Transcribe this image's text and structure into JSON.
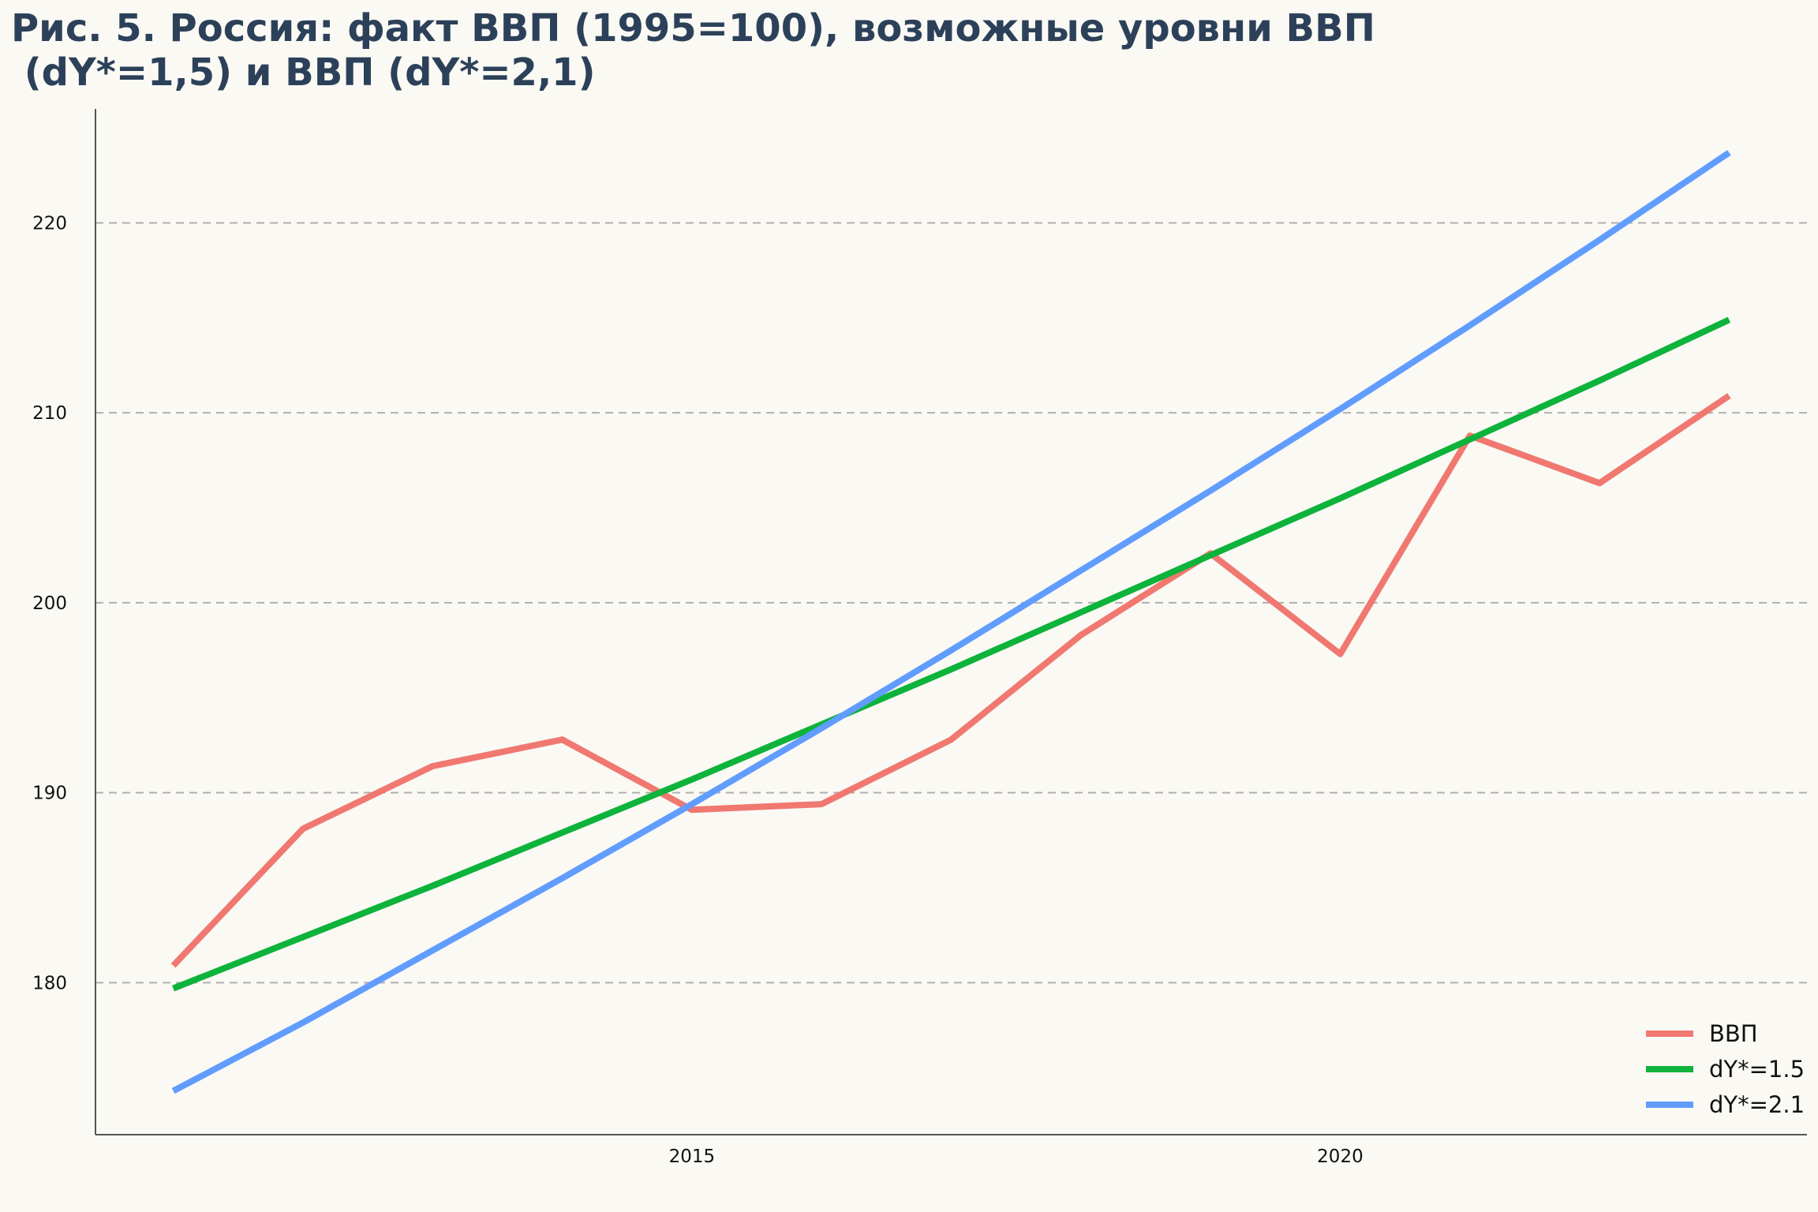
{
  "chart_data": {
    "type": "line",
    "title_lines": [
      "Рис. 5. Россия: факт ВВП (1995=100), возможные уровни ВВП",
      " (dY*=1,5) и ВВП (dY*=2,1)"
    ],
    "xlabel": "",
    "ylabel": "",
    "x": [
      2011,
      2012,
      2013,
      2014,
      2015,
      2016,
      2017,
      2018,
      2019,
      2020,
      2021,
      2022,
      2023
    ],
    "xlim": [
      2010.4,
      2023.6
    ],
    "ylim": [
      172,
      226
    ],
    "x_ticks": [
      2015,
      2020
    ],
    "x_tick_labels": [
      "2015",
      "2020"
    ],
    "y_ticks": [
      180,
      190,
      200,
      210,
      220
    ],
    "y_tick_labels": [
      "180",
      "190",
      "200",
      "210",
      "220"
    ],
    "grid": "horizontal dashed",
    "legend_position": "bottom-right",
    "series": [
      {
        "name": "ВВП",
        "color": "#f07870",
        "values": [
          180.9,
          188.1,
          191.4,
          192.8,
          189.1,
          189.4,
          192.8,
          198.3,
          202.6,
          197.3,
          208.8,
          206.3,
          210.9
        ]
      },
      {
        "name": "dY*=1.5",
        "color": "#0db33a",
        "values": [
          179.7,
          182.4,
          185.1,
          187.9,
          190.7,
          193.6,
          196.5,
          199.5,
          202.5,
          205.5,
          208.6,
          211.7,
          214.9
        ]
      },
      {
        "name": "dY*=2.1",
        "color": "#619cff",
        "values": [
          174.3,
          177.9,
          181.7,
          185.5,
          189.4,
          193.4,
          197.5,
          201.7,
          205.9,
          210.2,
          214.6,
          219.1,
          223.7
        ]
      }
    ]
  }
}
